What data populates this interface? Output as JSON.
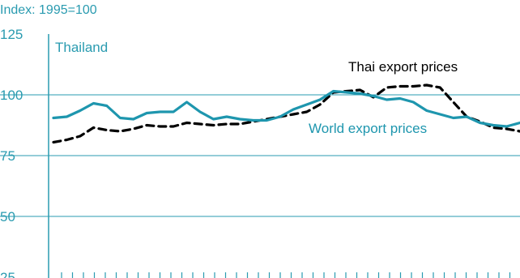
{
  "chart_data": {
    "type": "line",
    "title": "",
    "index_label": "Index: 1995=100",
    "panel_label": "Thailand",
    "ylim": [
      25,
      125
    ],
    "yticks": [
      25,
      50,
      75,
      100,
      125
    ],
    "ytick_labels": [
      "25",
      "50",
      "75",
      "100",
      "125"
    ],
    "x_tick_count": 42,
    "colors": {
      "accent": "#2a9bb0",
      "gridline": "#2a9bb0",
      "thai": "#000000",
      "world": "#1e96ae"
    },
    "series": [
      {
        "name": "Thai export prices",
        "style": "dashed",
        "values": [
          80.5,
          81.5,
          83,
          86.5,
          85.5,
          85,
          86,
          87.5,
          87,
          87,
          88.5,
          88,
          87.5,
          88,
          88,
          89,
          90,
          91,
          92,
          93,
          96,
          101,
          101.5,
          102,
          99,
          103,
          103.5,
          103.5,
          104,
          103,
          97,
          91,
          89,
          86.5,
          86,
          85
        ]
      },
      {
        "name": "World export prices",
        "style": "solid",
        "values": [
          90.5,
          91,
          93.5,
          96.5,
          95.5,
          90.5,
          90,
          92.5,
          93,
          93,
          97,
          93,
          90,
          91,
          90,
          89.5,
          89.5,
          91,
          94,
          96,
          98,
          101.5,
          101,
          100.5,
          99.5,
          98,
          98.5,
          97,
          93.5,
          92,
          90.5,
          91,
          88.5,
          87.5,
          87,
          88.5
        ]
      }
    ]
  }
}
